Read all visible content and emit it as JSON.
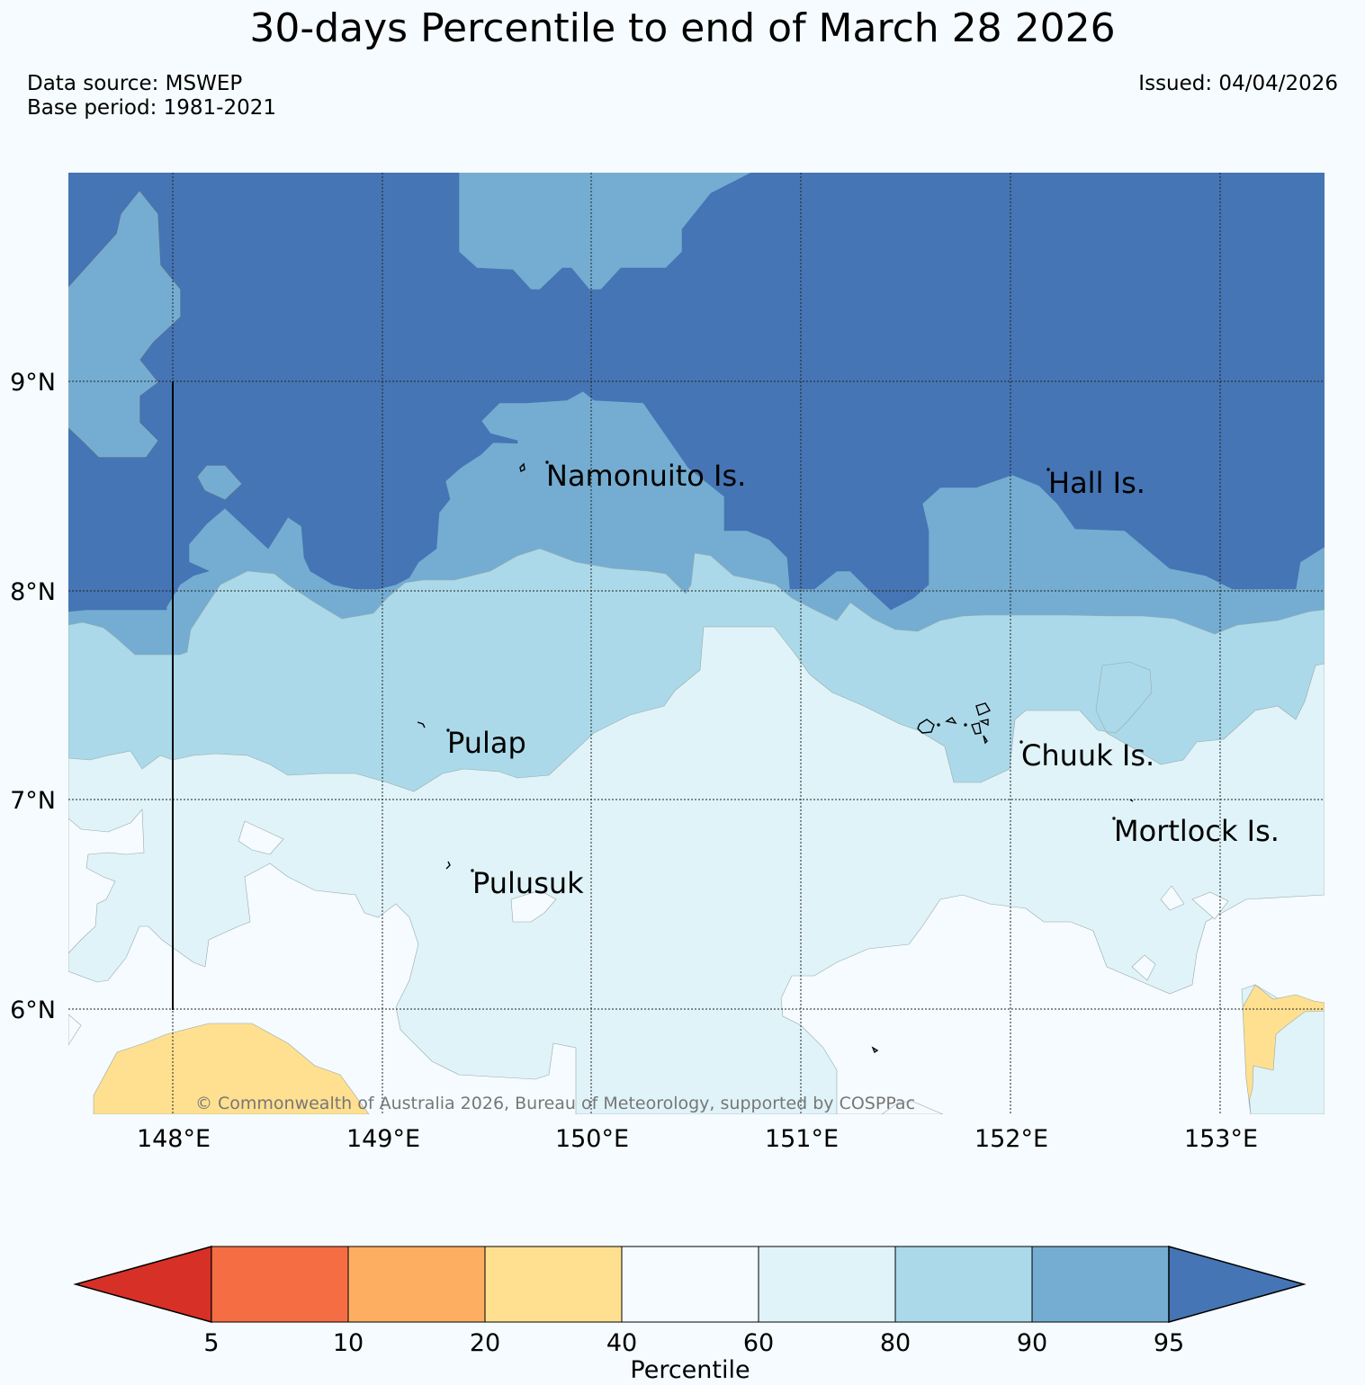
{
  "header": {
    "title": "30-days Percentile to end of March 28 2026",
    "data_source": "Data source: MSWEP",
    "base_period": "Base period: 1981-2021",
    "issued": "Issued: 04/04/2026"
  },
  "map": {
    "lat_ticks": [
      "9°N",
      "8°N",
      "7°N",
      "6°N"
    ],
    "lon_ticks": [
      "148°E",
      "149°E",
      "150°E",
      "151°E",
      "152°E",
      "153°E"
    ],
    "places": [
      "Namonuito Is.",
      "Hall Is.",
      "Pulap",
      "Chuuk Is.",
      "Mortlock Is.",
      "Pulusuk"
    ],
    "copyright": "© Commonwealth of Australia 2026, Bureau of Meteorology, supported by COSPPac"
  },
  "colorbar": {
    "label": "Percentile",
    "ticks": [
      "5",
      "10",
      "20",
      "40",
      "60",
      "80",
      "90",
      "95"
    ],
    "colors": [
      "#d73027",
      "#f46d43",
      "#fdae61",
      "#fee090",
      "#f5fbfe",
      "#e0f3f8",
      "#abd9e9",
      "#74add1",
      "#4575b4"
    ]
  }
}
